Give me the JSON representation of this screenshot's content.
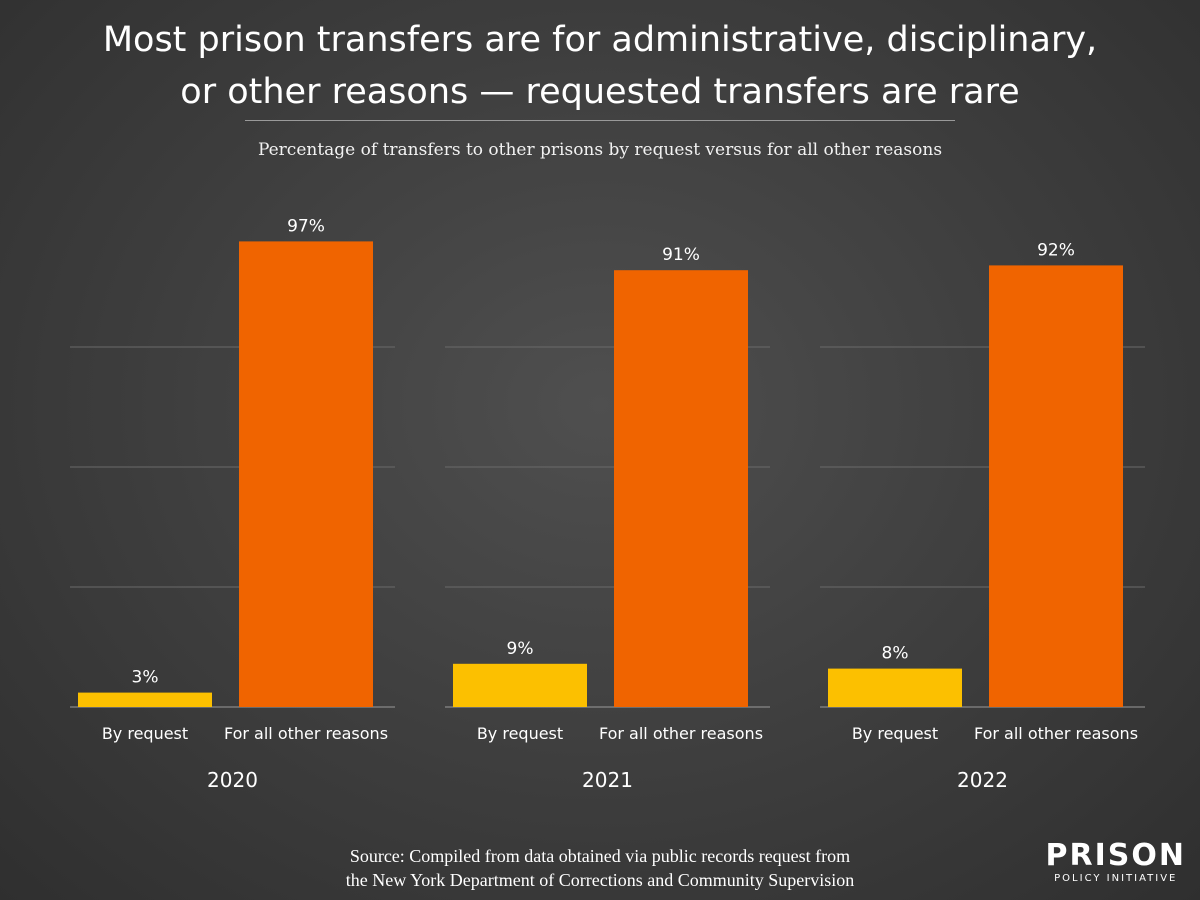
{
  "chart_data": {
    "type": "bar",
    "title_lines": [
      "Most prison transfers are for administrative, disciplinary,",
      "or other reasons — requested transfers are rare"
    ],
    "subtitle": "Percentage of transfers to other prisons by request versus for all other reasons",
    "categories": [
      "By request",
      "For all other reasons"
    ],
    "groups": [
      {
        "year": "2020",
        "values": [
          3,
          97
        ],
        "labels": [
          "3%",
          "97%"
        ]
      },
      {
        "year": "2021",
        "values": [
          9,
          91
        ],
        "labels": [
          "9%",
          "91%"
        ]
      },
      {
        "year": "2022",
        "values": [
          8,
          92
        ],
        "labels": [
          "8%",
          "92%"
        ]
      }
    ],
    "ylim": [
      0,
      100
    ],
    "grid": true,
    "colors": {
      "by_request": "#fcc000",
      "other_reasons": "#f06400",
      "grid": "#6a6a6a",
      "baseline": "#9a9a9a"
    }
  },
  "source": {
    "line1": "Source: Compiled from data obtained via public records request from",
    "line2": "the New York Department of Corrections and Community Supervision"
  },
  "logo": {
    "main": "PRISON",
    "sub": "POLICY INITIATIVE"
  }
}
